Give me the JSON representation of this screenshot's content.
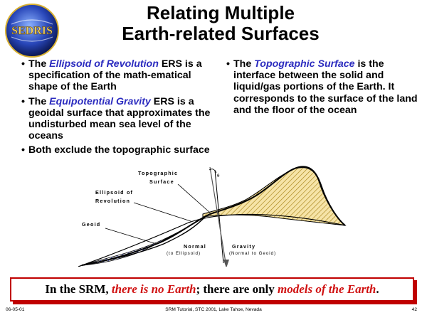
{
  "slide": {
    "logo_text": "SEDRIS",
    "title_line1": "Relating Multiple",
    "title_line2": "Earth-related Surfaces"
  },
  "bullets_left": [
    {
      "pre": "The ",
      "highlight": "Ellipsoid of Revolution",
      "post": " ERS is a specification of the math-ematical shape of the Earth"
    },
    {
      "pre": "The ",
      "highlight": "Equipotential Gravity",
      "post": " ERS is a geoidal surface that approximates the undisturbed mean sea level of the oceans"
    },
    {
      "pre": "",
      "highlight": "",
      "post": "Both exclude the topographic surface"
    }
  ],
  "bullets_right": [
    {
      "pre": "The ",
      "highlight": "Topographic Surface",
      "post": " is the interface between the solid and liquid/gas portions of the Earth. It corresponds to the surface of the land and the floor of the ocean"
    }
  ],
  "diagram": {
    "topo_label_1": "Topographic",
    "topo_label_2": "Surface",
    "ellipsoid_label_1": "Ellipsoid of",
    "ellipsoid_label_2": "Revolution",
    "geoid_label": "Geoid",
    "normal_label": "Normal",
    "normal_sub": "(to Ellipsoid)",
    "gravity_label": "Gravity",
    "gravity_sub": "(Normal to Geoid)",
    "theta_label": "θ"
  },
  "callout": {
    "part1": "In the SRM, ",
    "part2": "there is no Earth",
    "part3": "; there are only ",
    "part4": "models of the Earth",
    "part5": "."
  },
  "footer": {
    "date": "06-05-01",
    "event": "SRM Tutorial, STC 2001, Lake Tahoe, Nevada",
    "page": "42"
  },
  "colors": {
    "highlight": "#2b2bbf",
    "callout_red": "#d01010",
    "land_hatch": "#e8c46a",
    "sea_hatch": "#5b6fd6"
  }
}
